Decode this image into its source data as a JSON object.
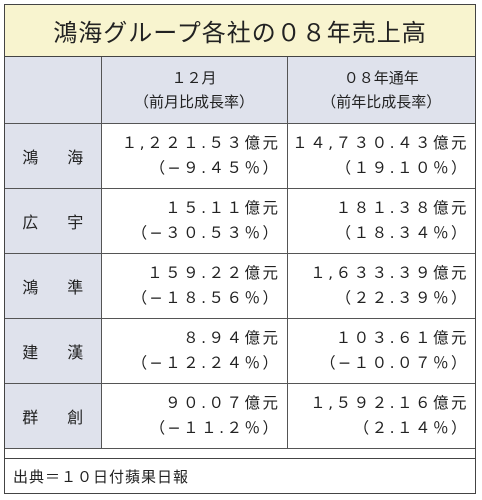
{
  "title": "鴻海グループ各社の０８年売上高",
  "header": {
    "col1_line1": "１２月",
    "col1_line2": "（前月比成長率）",
    "col2_line1": "０８年通年",
    "col2_line2": "（前年比成長率）"
  },
  "rows": [
    {
      "name": "鴻 海",
      "dec_value": "１,２２１.５３億元",
      "dec_growth": "（−９.４５％）",
      "year_value": "１４,７３０.４３億元",
      "year_growth": "（１９.１０％）"
    },
    {
      "name": "広 宇",
      "dec_value": "１５.１１億元",
      "dec_growth": "（−３０.５３％）",
      "year_value": "１８１.３８億元",
      "year_growth": "（１８.３４％）"
    },
    {
      "name": "鴻 準",
      "dec_value": "１５９.２２億元",
      "dec_growth": "（−１８.５６％）",
      "year_value": "１,６３３.３９億元",
      "year_growth": "（２２.３９％）"
    },
    {
      "name": "建 漢",
      "dec_value": "８.９４億元",
      "dec_growth": "（−１２.２４％）",
      "year_value": "１０３.６１億元",
      "year_growth": "（−１０.０７％）"
    },
    {
      "name": "群 創",
      "dec_value": "９０.０７億元",
      "dec_growth": "（−１１.２％）",
      "year_value": "１,５９２.１６億元",
      "year_growth": "（２.１４％）"
    }
  ],
  "source": "出典＝１０日付蘋果日報"
}
